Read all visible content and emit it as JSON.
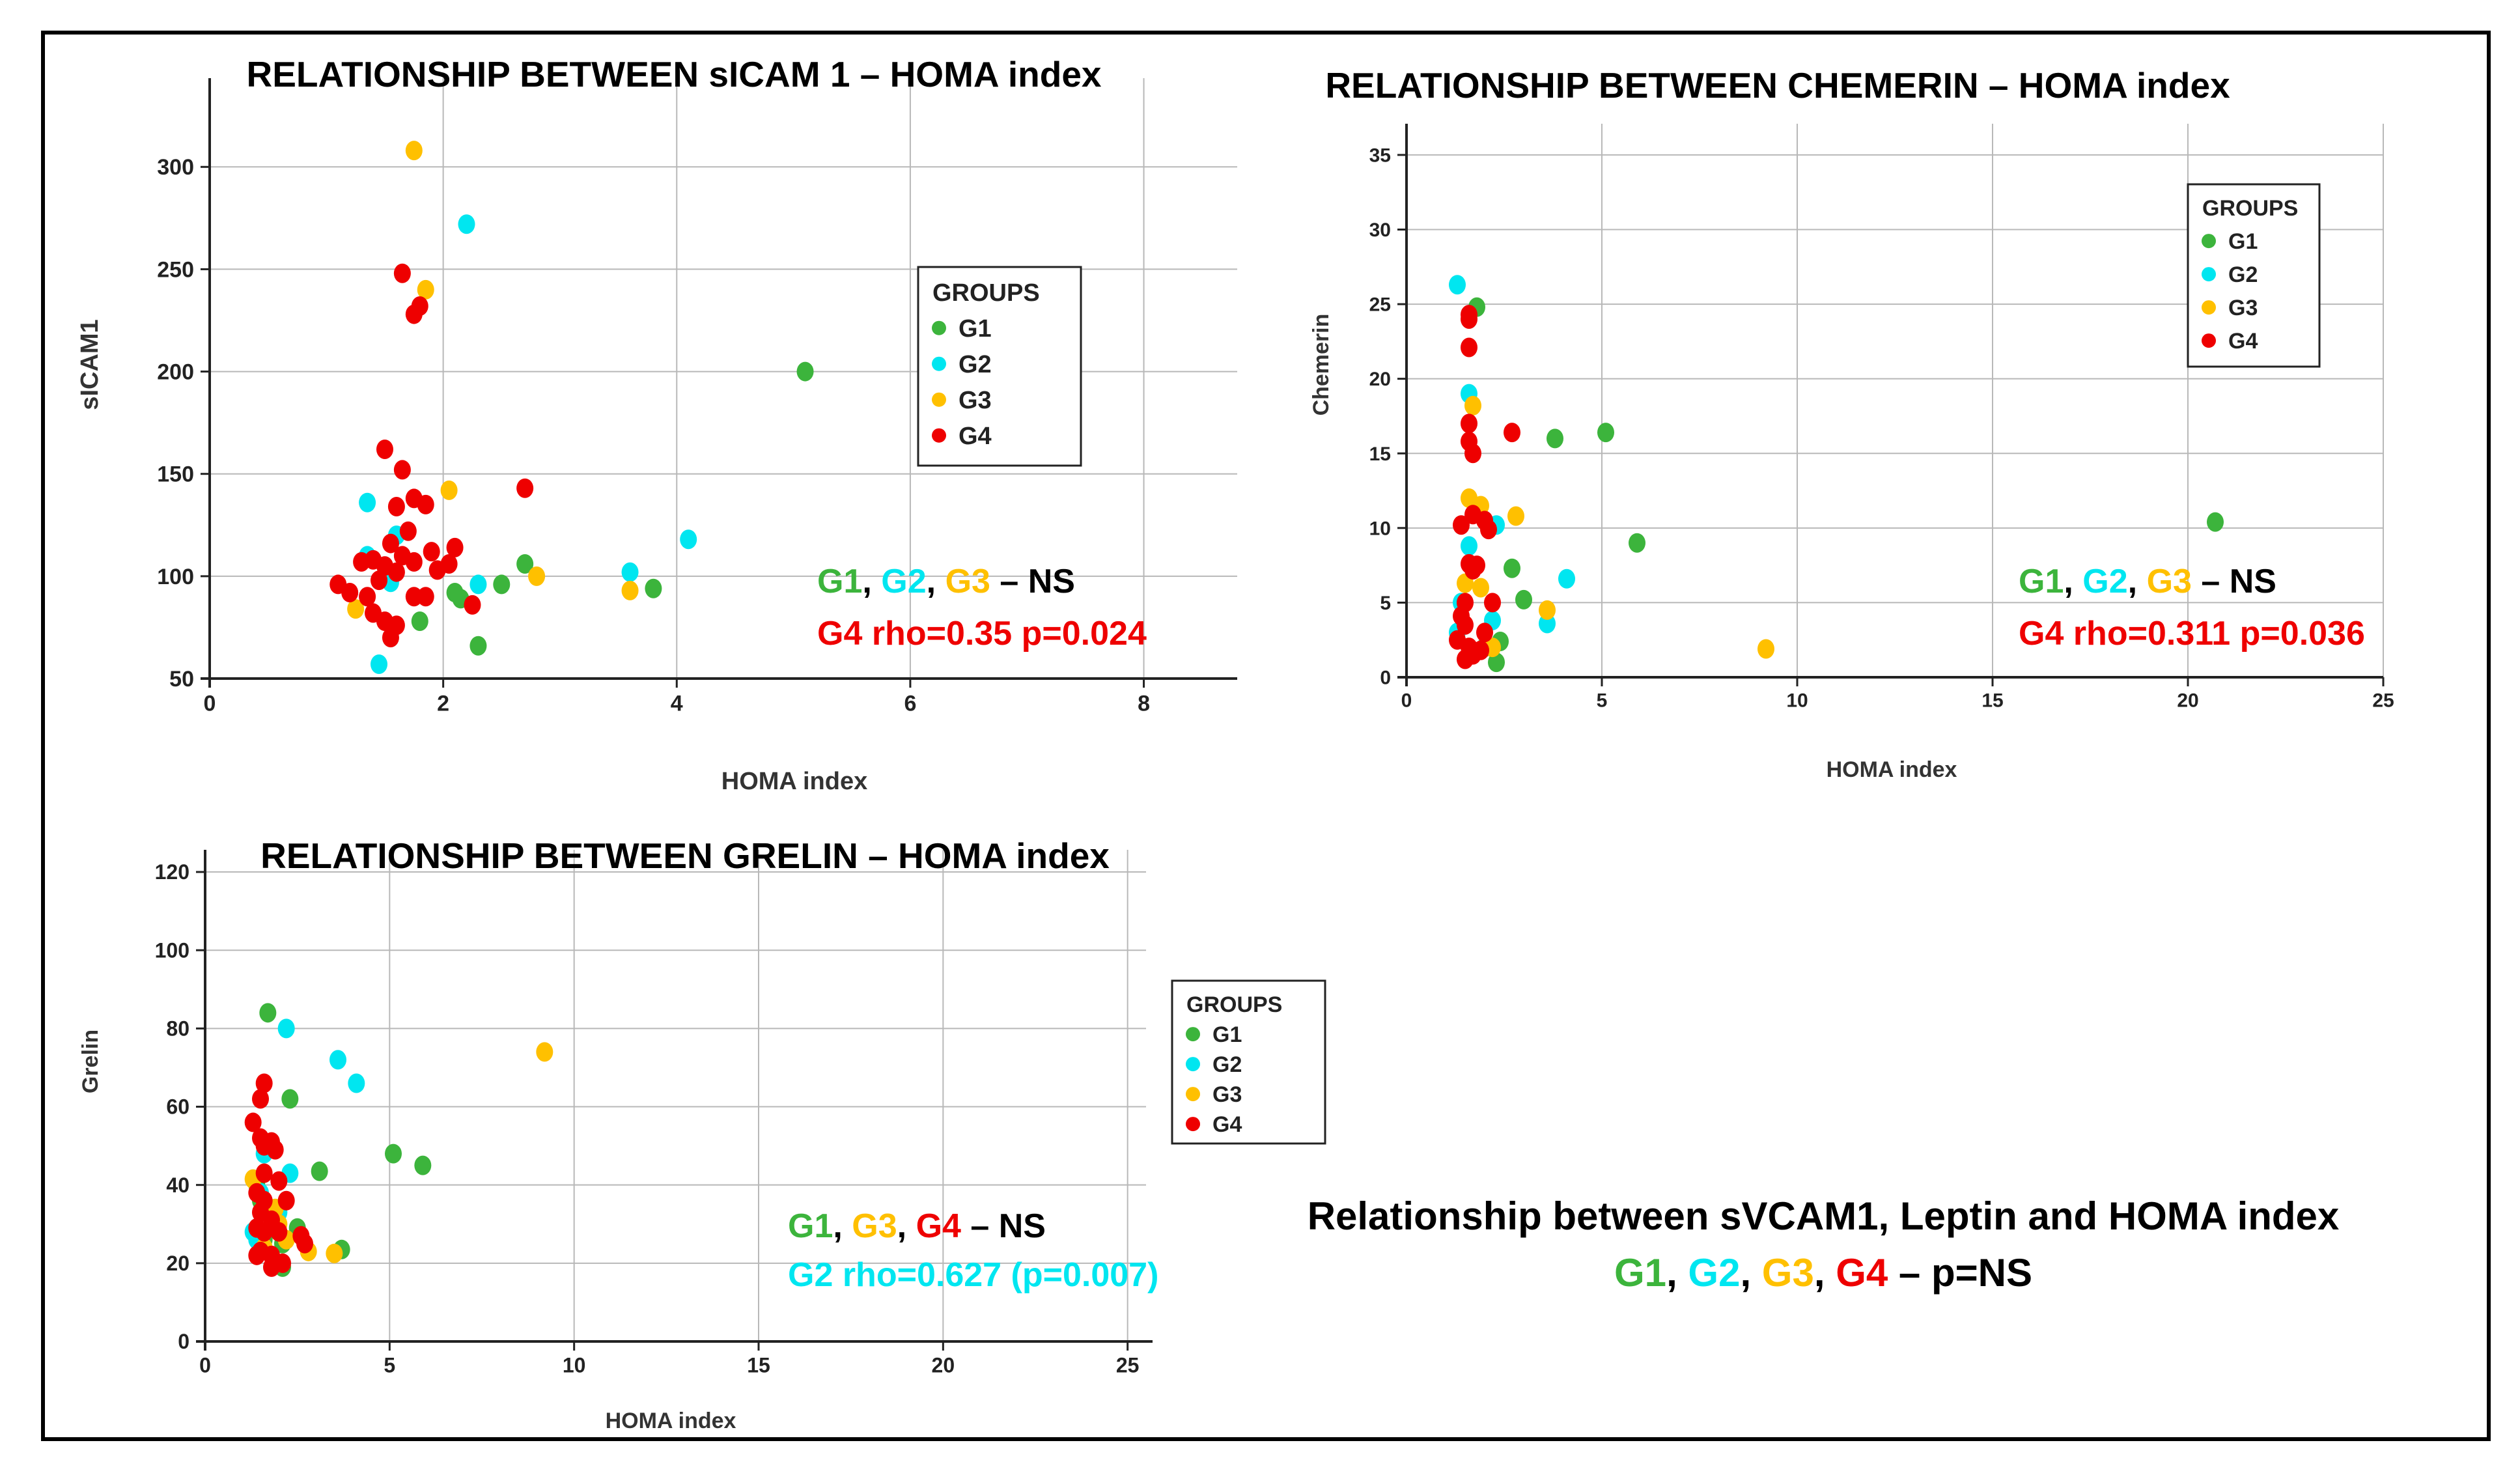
{
  "colors": {
    "G1": "#3cb43c",
    "G2": "#00e6f0",
    "G3": "#ffc000",
    "G4": "#ee0000",
    "NS": "#000000",
    "frame": "#000000",
    "grid": "#b8b8b8"
  },
  "groups_title": "GROUPS",
  "chart_data": [
    {
      "type": "scatter",
      "title": "RELATIONSHIP BETWEEN sICAM 1 – HOMA index",
      "xlabel": "HOMA index",
      "ylabel": "sICAM1",
      "xlim": [
        0,
        8.8
      ],
      "ylim": [
        50,
        330
      ],
      "xticks": [
        0,
        2,
        4,
        6,
        8
      ],
      "yticks": [
        50,
        100,
        150,
        200,
        250,
        300
      ],
      "grid": true,
      "legend": "upper-right",
      "series": [
        {
          "name": "G1",
          "points": [
            [
              5.1,
              200
            ],
            [
              2.7,
              106
            ],
            [
              2.5,
              96
            ],
            [
              2.1,
              92
            ],
            [
              2.15,
              89
            ],
            [
              1.8,
              78
            ],
            [
              2.3,
              66
            ],
            [
              3.8,
              94
            ]
          ]
        },
        {
          "name": "G2",
          "points": [
            [
              2.2,
              272
            ],
            [
              1.35,
              136
            ],
            [
              1.6,
              120
            ],
            [
              1.35,
              110
            ],
            [
              2.3,
              96
            ],
            [
              1.55,
              97
            ],
            [
              3.6,
              102
            ],
            [
              4.1,
              118
            ],
            [
              1.45,
              57
            ]
          ]
        },
        {
          "name": "G3",
          "points": [
            [
              1.75,
              308
            ],
            [
              1.85,
              240
            ],
            [
              2.05,
              142
            ],
            [
              2.8,
              100
            ],
            [
              3.6,
              93
            ],
            [
              1.25,
              84
            ]
          ]
        },
        {
          "name": "G4",
          "points": [
            [
              1.65,
              248
            ],
            [
              1.75,
              228
            ],
            [
              1.8,
              232
            ],
            [
              1.5,
              162
            ],
            [
              1.65,
              152
            ],
            [
              2.7,
              143
            ],
            [
              1.75,
              138
            ],
            [
              1.85,
              135
            ],
            [
              1.6,
              134
            ],
            [
              1.7,
              122
            ],
            [
              1.55,
              116
            ],
            [
              1.9,
              112
            ],
            [
              2.1,
              114
            ],
            [
              1.65,
              110
            ],
            [
              1.4,
              108
            ],
            [
              1.5,
              105
            ],
            [
              1.75,
              107
            ],
            [
              1.95,
              103
            ],
            [
              2.05,
              106
            ],
            [
              1.3,
              107
            ],
            [
              1.6,
              102
            ],
            [
              1.1,
              96
            ],
            [
              1.45,
              98
            ],
            [
              1.35,
              90
            ],
            [
              1.75,
              90
            ],
            [
              1.85,
              90
            ],
            [
              2.25,
              86
            ],
            [
              1.5,
              78
            ],
            [
              1.4,
              82
            ],
            [
              1.6,
              76
            ],
            [
              1.55,
              70
            ],
            [
              1.2,
              92
            ]
          ]
        }
      ],
      "annotation": {
        "ns_parts": [
          {
            "text": "G1",
            "color": "G1"
          },
          {
            "text": ", ",
            "color": "NS"
          },
          {
            "text": "G2",
            "color": "G2"
          },
          {
            "text": ", ",
            "color": "NS"
          },
          {
            "text": "G3",
            "color": "G3"
          },
          {
            "text": " – NS",
            "color": "NS"
          }
        ],
        "sig_text": "G4 rho=0.35 p=0.024",
        "sig_color": "G4"
      }
    },
    {
      "type": "scatter",
      "title": "RELATIONSHIP BETWEEN CHEMERIN – HOMA index",
      "xlabel": "HOMA index",
      "ylabel": "Chemerin",
      "xlim": [
        0,
        25
      ],
      "ylim": [
        0,
        36
      ],
      "xticks": [
        0,
        5,
        10,
        15,
        20,
        25
      ],
      "yticks": [
        0,
        5,
        10,
        15,
        20,
        25,
        30,
        35
      ],
      "grid": true,
      "legend": "upper-right",
      "series": [
        {
          "name": "G1",
          "points": [
            [
              1.8,
              24.8
            ],
            [
              3.8,
              16
            ],
            [
              5.1,
              16.4
            ],
            [
              5.9,
              9
            ],
            [
              20.7,
              10.4
            ],
            [
              2.7,
              7.3
            ],
            [
              3.0,
              5.2
            ],
            [
              2.4,
              2.4
            ],
            [
              2.0,
              2.0
            ],
            [
              2.3,
              1.0
            ]
          ]
        },
        {
          "name": "G2",
          "points": [
            [
              1.3,
              26.3
            ],
            [
              1.6,
              19.0
            ],
            [
              2.3,
              10.2
            ],
            [
              4.1,
              6.6
            ],
            [
              3.6,
              3.6
            ],
            [
              2.2,
              3.8
            ],
            [
              1.4,
              5.0
            ],
            [
              1.6,
              8.8
            ],
            [
              1.3,
              3.0
            ]
          ]
        },
        {
          "name": "G3",
          "points": [
            [
              1.7,
              18.2
            ],
            [
              1.6,
              12.0
            ],
            [
              1.9,
              11.5
            ],
            [
              2.8,
              10.8
            ],
            [
              1.9,
              6.0
            ],
            [
              3.6,
              4.5
            ],
            [
              2.2,
              2.0
            ],
            [
              9.2,
              1.9
            ],
            [
              1.5,
              6.3
            ]
          ]
        },
        {
          "name": "G4",
          "points": [
            [
              1.6,
              24.3
            ],
            [
              1.6,
              24.0
            ],
            [
              1.6,
              22.1
            ],
            [
              1.6,
              17.0
            ],
            [
              1.6,
              15.8
            ],
            [
              1.7,
              15.0
            ],
            [
              2.7,
              16.4
            ],
            [
              1.4,
              10.2
            ],
            [
              1.7,
              10.9
            ],
            [
              2.0,
              10.5
            ],
            [
              2.1,
              9.9
            ],
            [
              1.6,
              7.6
            ],
            [
              1.7,
              7.2
            ],
            [
              1.8,
              7.5
            ],
            [
              1.5,
              5.0
            ],
            [
              2.2,
              5.0
            ],
            [
              1.4,
              4.1
            ],
            [
              1.5,
              3.5
            ],
            [
              1.3,
              2.5
            ],
            [
              1.6,
              2.0
            ],
            [
              1.7,
              1.5
            ],
            [
              1.5,
              1.2
            ],
            [
              2.0,
              3.0
            ],
            [
              1.9,
              1.8
            ]
          ]
        }
      ],
      "annotation": {
        "ns_parts": [
          {
            "text": "G1",
            "color": "G1"
          },
          {
            "text": ", ",
            "color": "NS"
          },
          {
            "text": "G2",
            "color": "G2"
          },
          {
            "text": ", ",
            "color": "NS"
          },
          {
            "text": "G3",
            "color": "G3"
          },
          {
            "text": " – NS",
            "color": "NS"
          }
        ],
        "sig_text": "G4 rho=0.311 p=0.036",
        "sig_color": "G4"
      }
    },
    {
      "type": "scatter",
      "title": "RELATIONSHIP BETWEEN GRELIN – HOMA index",
      "xlabel": "HOMA index",
      "ylabel": "Grelin",
      "xlim": [
        0,
        25.5
      ],
      "ylim": [
        0,
        124
      ],
      "xticks": [
        0,
        5,
        10,
        15,
        20,
        25
      ],
      "yticks": [
        0,
        20,
        40,
        60,
        80,
        100,
        120
      ],
      "grid": true,
      "legend": "right",
      "series": [
        {
          "name": "G1",
          "points": [
            [
              1.7,
              84
            ],
            [
              2.3,
              62
            ],
            [
              5.1,
              48
            ],
            [
              5.9,
              45
            ],
            [
              3.1,
              43.5
            ],
            [
              1.4,
              40
            ],
            [
              1.5,
              36
            ],
            [
              1.9,
              31
            ],
            [
              2.5,
              29
            ],
            [
              2.1,
              25
            ],
            [
              3.7,
              23.5
            ],
            [
              2.1,
              19
            ],
            [
              1.6,
              26
            ]
          ]
        },
        {
          "name": "G2",
          "points": [
            [
              2.2,
              80
            ],
            [
              3.6,
              72
            ],
            [
              4.1,
              66
            ],
            [
              1.6,
              48
            ],
            [
              2.3,
              43
            ],
            [
              1.3,
              28
            ],
            [
              1.4,
              26
            ],
            [
              1.5,
              38
            ],
            [
              2.0,
              33
            ]
          ]
        },
        {
          "name": "G3",
          "points": [
            [
              9.2,
              74
            ],
            [
              1.3,
              41.5
            ],
            [
              1.9,
              34
            ],
            [
              2.0,
              30
            ],
            [
              2.8,
              23
            ],
            [
              3.5,
              22.5
            ],
            [
              1.6,
              24
            ],
            [
              2.2,
              26
            ]
          ]
        },
        {
          "name": "G4",
          "points": [
            [
              1.6,
              66
            ],
            [
              1.3,
              56
            ],
            [
              1.5,
              62
            ],
            [
              1.5,
              52
            ],
            [
              1.8,
              51
            ],
            [
              1.9,
              49
            ],
            [
              1.6,
              50
            ],
            [
              1.6,
              43
            ],
            [
              2.0,
              41
            ],
            [
              1.4,
              38
            ],
            [
              1.6,
              36
            ],
            [
              2.2,
              36
            ],
            [
              1.5,
              33
            ],
            [
              1.8,
              31
            ],
            [
              1.4,
              29
            ],
            [
              1.6,
              28
            ],
            [
              2.0,
              28
            ],
            [
              2.6,
              27
            ],
            [
              2.7,
              25
            ],
            [
              1.5,
              23
            ],
            [
              1.4,
              22
            ],
            [
              1.8,
              22
            ],
            [
              1.8,
              19
            ],
            [
              2.1,
              20
            ]
          ]
        }
      ],
      "annotation": {
        "ns_parts": [
          {
            "text": "G1",
            "color": "G1"
          },
          {
            "text": ", ",
            "color": "NS"
          },
          {
            "text": "G3",
            "color": "G3"
          },
          {
            "text": ", ",
            "color": "NS"
          },
          {
            "text": "G4",
            "color": "G4"
          },
          {
            "text": " – NS",
            "color": "NS"
          }
        ],
        "sig_text": "G2 rho=0.627 (p=0.007)",
        "sig_color": "G2"
      }
    }
  ],
  "summary": {
    "title": "Relationship between sVCAM1, Leptin and HOMA index",
    "parts": [
      {
        "text": "G1",
        "color": "G1"
      },
      {
        "text": ", ",
        "color": "NS"
      },
      {
        "text": "G2",
        "color": "G2"
      },
      {
        "text": ", ",
        "color": "NS"
      },
      {
        "text": "G3",
        "color": "G3"
      },
      {
        "text": ", ",
        "color": "NS"
      },
      {
        "text": "G4",
        "color": "G4"
      },
      {
        "text": " – p=NS",
        "color": "NS"
      }
    ]
  }
}
